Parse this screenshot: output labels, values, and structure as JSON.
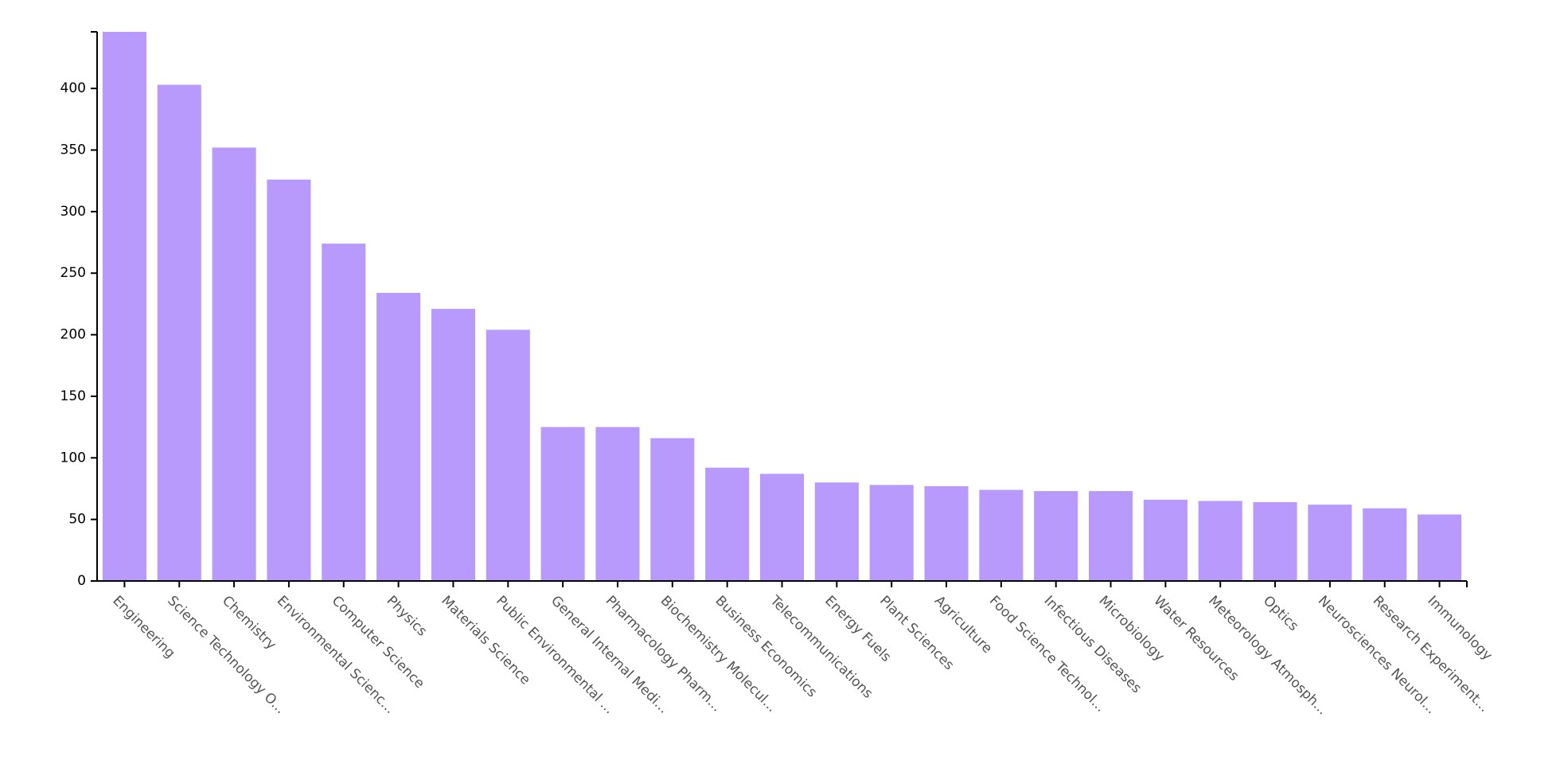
{
  "chart_data": {
    "type": "bar",
    "title": "",
    "xlabel": "",
    "ylabel": "",
    "ylim": [
      0,
      446
    ],
    "yticks": [
      0,
      50,
      100,
      150,
      200,
      250,
      300,
      350,
      400
    ],
    "bar_color": "#b899fc",
    "categories": [
      "Engineering",
      "Science Technology O...",
      "Chemistry",
      "Environmental Scienc...",
      "Computer Science",
      "Physics",
      "Materials Science",
      "Public Environmental ...",
      "General Internal Medi...",
      "Pharmacology Pharm...",
      "Biochemistry Molecul...",
      "Business Economics",
      "Telecommunications",
      "Energy Fuels",
      "Plant Sciences",
      "Agriculture",
      "Food Science Technol...",
      "Infectious Diseases",
      "Microbiology",
      "Water Resources",
      "Meteorology Atmosph...",
      "Optics",
      "Neurosciences Neurol...",
      "Research Experiment...",
      "Immunology"
    ],
    "values": [
      446,
      403,
      352,
      326,
      274,
      234,
      221,
      204,
      125,
      125,
      116,
      92,
      87,
      80,
      78,
      77,
      74,
      73,
      73,
      66,
      65,
      64,
      62,
      59,
      54
    ]
  }
}
